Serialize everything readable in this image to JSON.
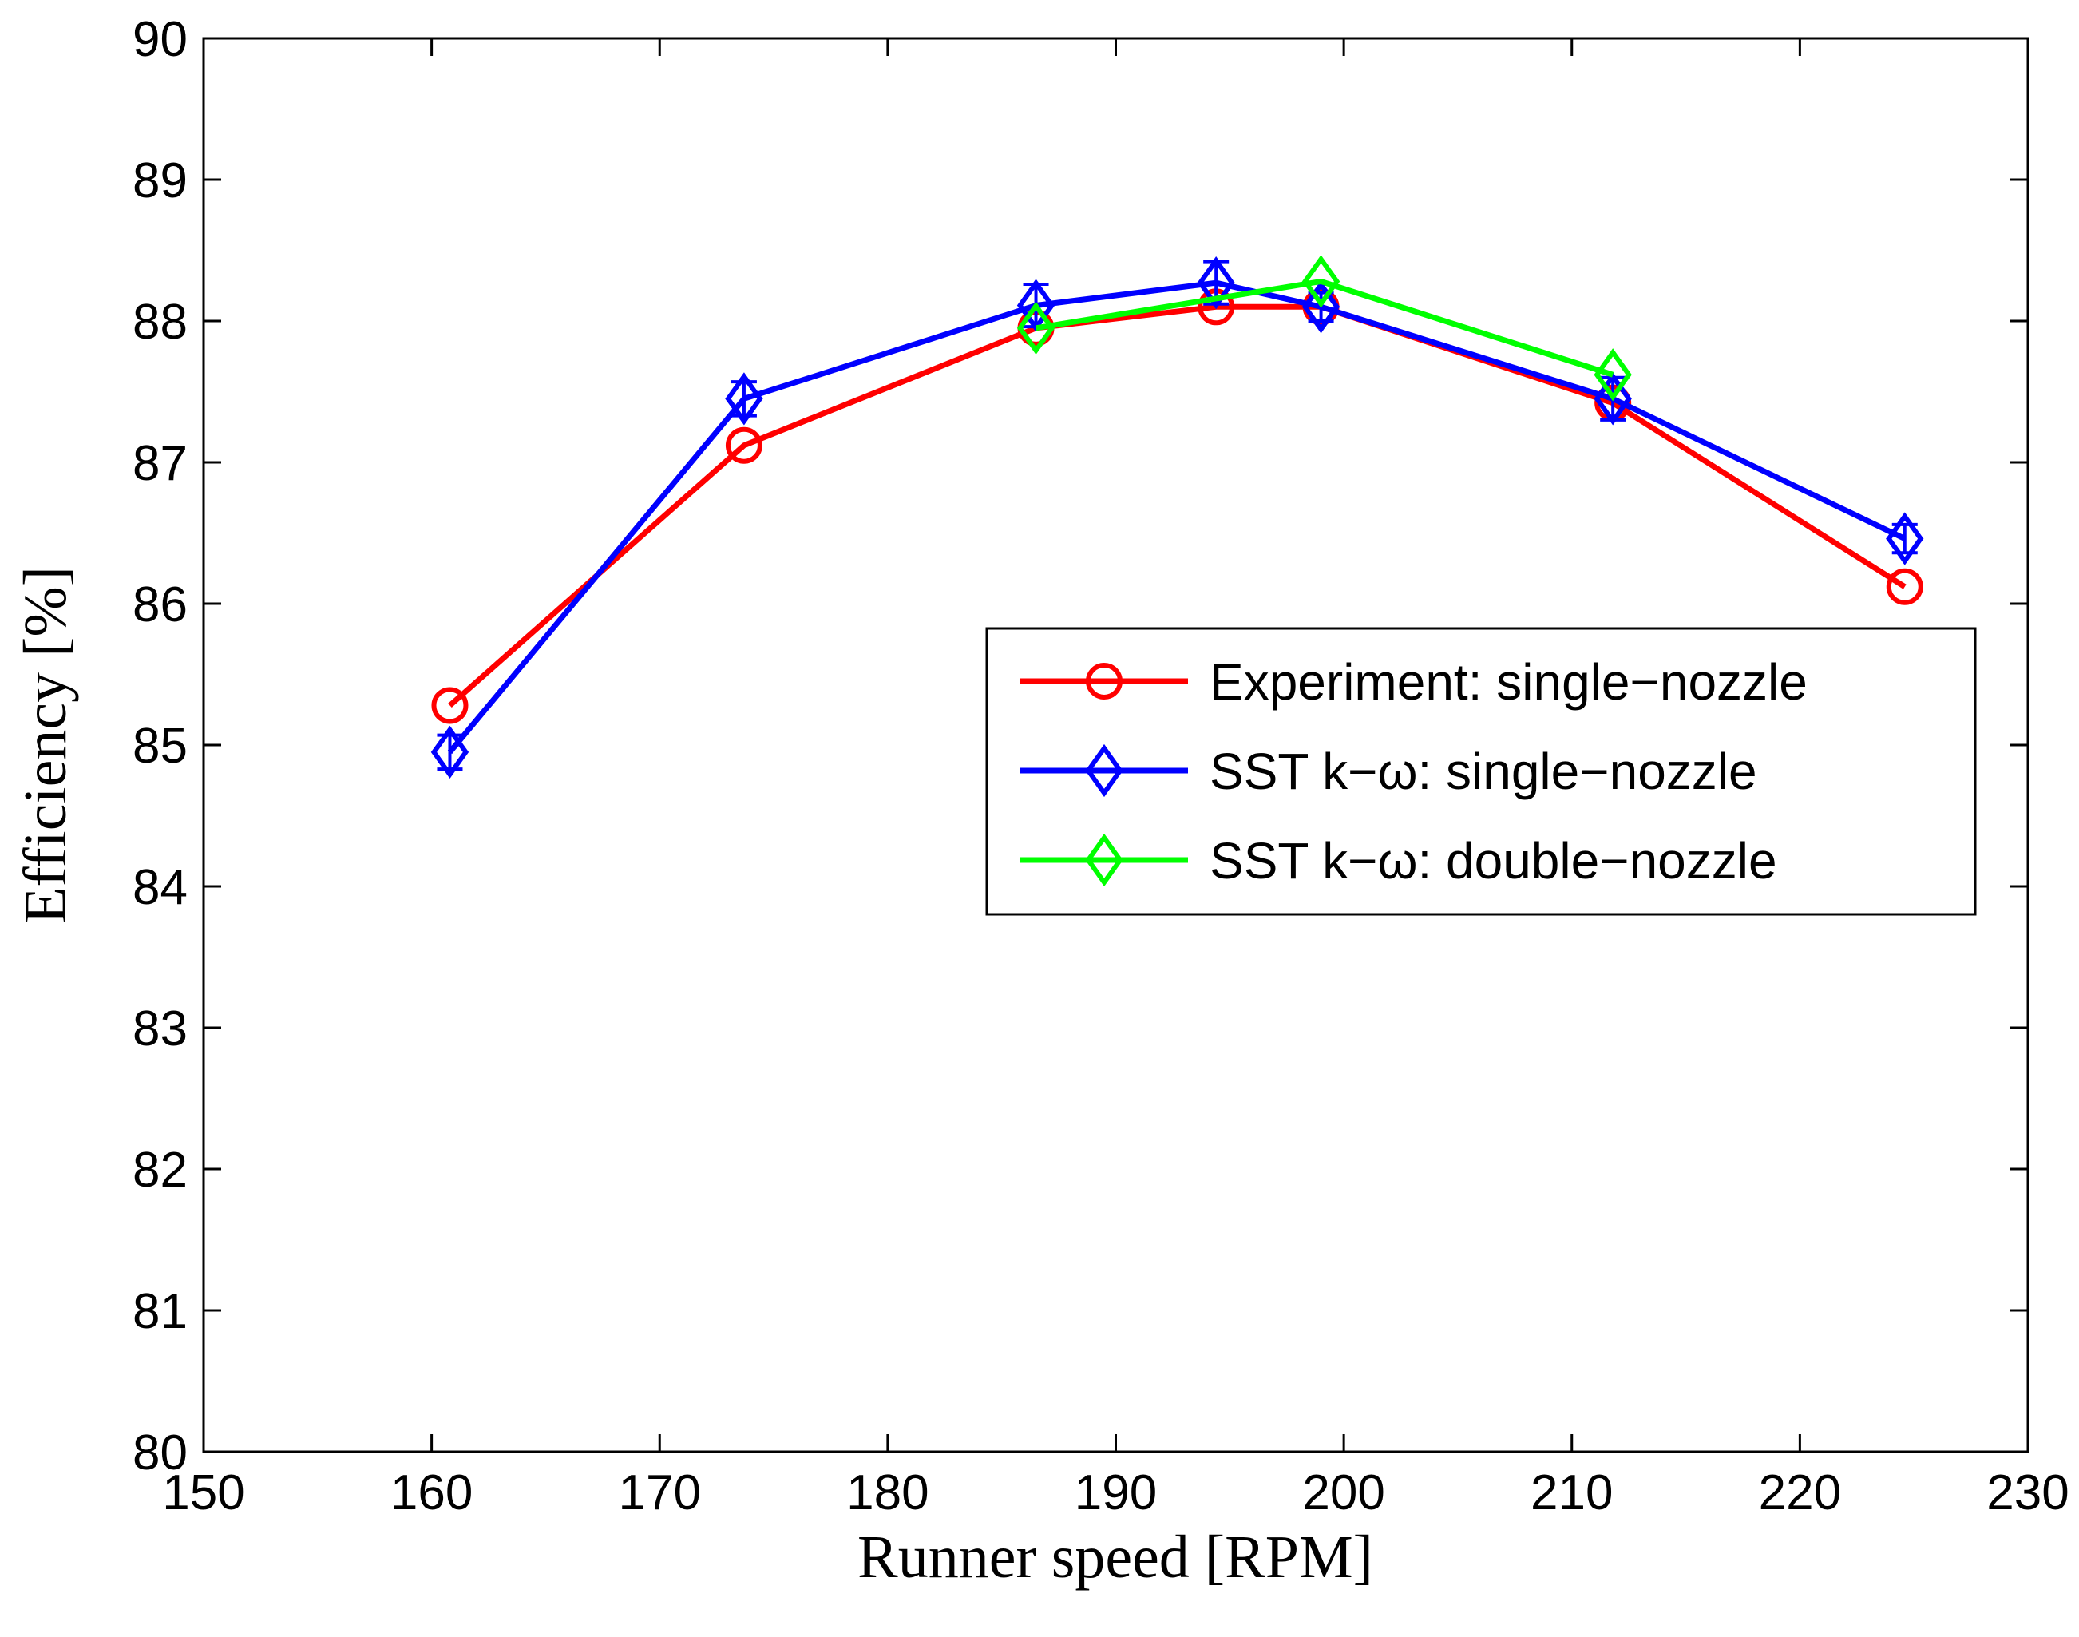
{
  "chart_data": {
    "type": "line",
    "title": "",
    "xlabel": "Runner speed [RPM]",
    "ylabel": "Efficiency [%]",
    "xlim": [
      150,
      230
    ],
    "ylim": [
      80,
      90
    ],
    "xticks": [
      150,
      160,
      170,
      180,
      190,
      200,
      210,
      220,
      230
    ],
    "yticks": [
      80,
      81,
      82,
      83,
      84,
      85,
      86,
      87,
      88,
      89,
      90
    ],
    "grid": false,
    "legend_position": "center-right",
    "series": [
      {
        "name": "Experiment: single−nozzle",
        "color": "#ff0000",
        "marker": "circle",
        "x": [
          160.8,
          173.7,
          186.5,
          194.4,
          199.0,
          211.8,
          224.6
        ],
        "y": [
          85.28,
          87.12,
          87.95,
          88.1,
          88.1,
          87.42,
          86.12
        ]
      },
      {
        "name": "SST k−ω: single−nozzle",
        "color": "#0000ff",
        "marker": "diamond",
        "x": [
          160.8,
          173.7,
          186.5,
          194.4,
          199.0,
          211.8,
          224.6
        ],
        "y": [
          84.95,
          87.45,
          88.11,
          88.27,
          88.1,
          87.45,
          86.46
        ],
        "error": [
          0.12,
          0.12,
          0.15,
          0.15,
          0.1,
          0.15,
          0.1
        ]
      },
      {
        "name": "SST k−ω: double−nozzle",
        "color": "#00ff00",
        "marker": "diamond",
        "x": [
          186.5,
          199.0,
          211.8
        ],
        "y": [
          87.95,
          88.28,
          87.62
        ]
      }
    ]
  }
}
